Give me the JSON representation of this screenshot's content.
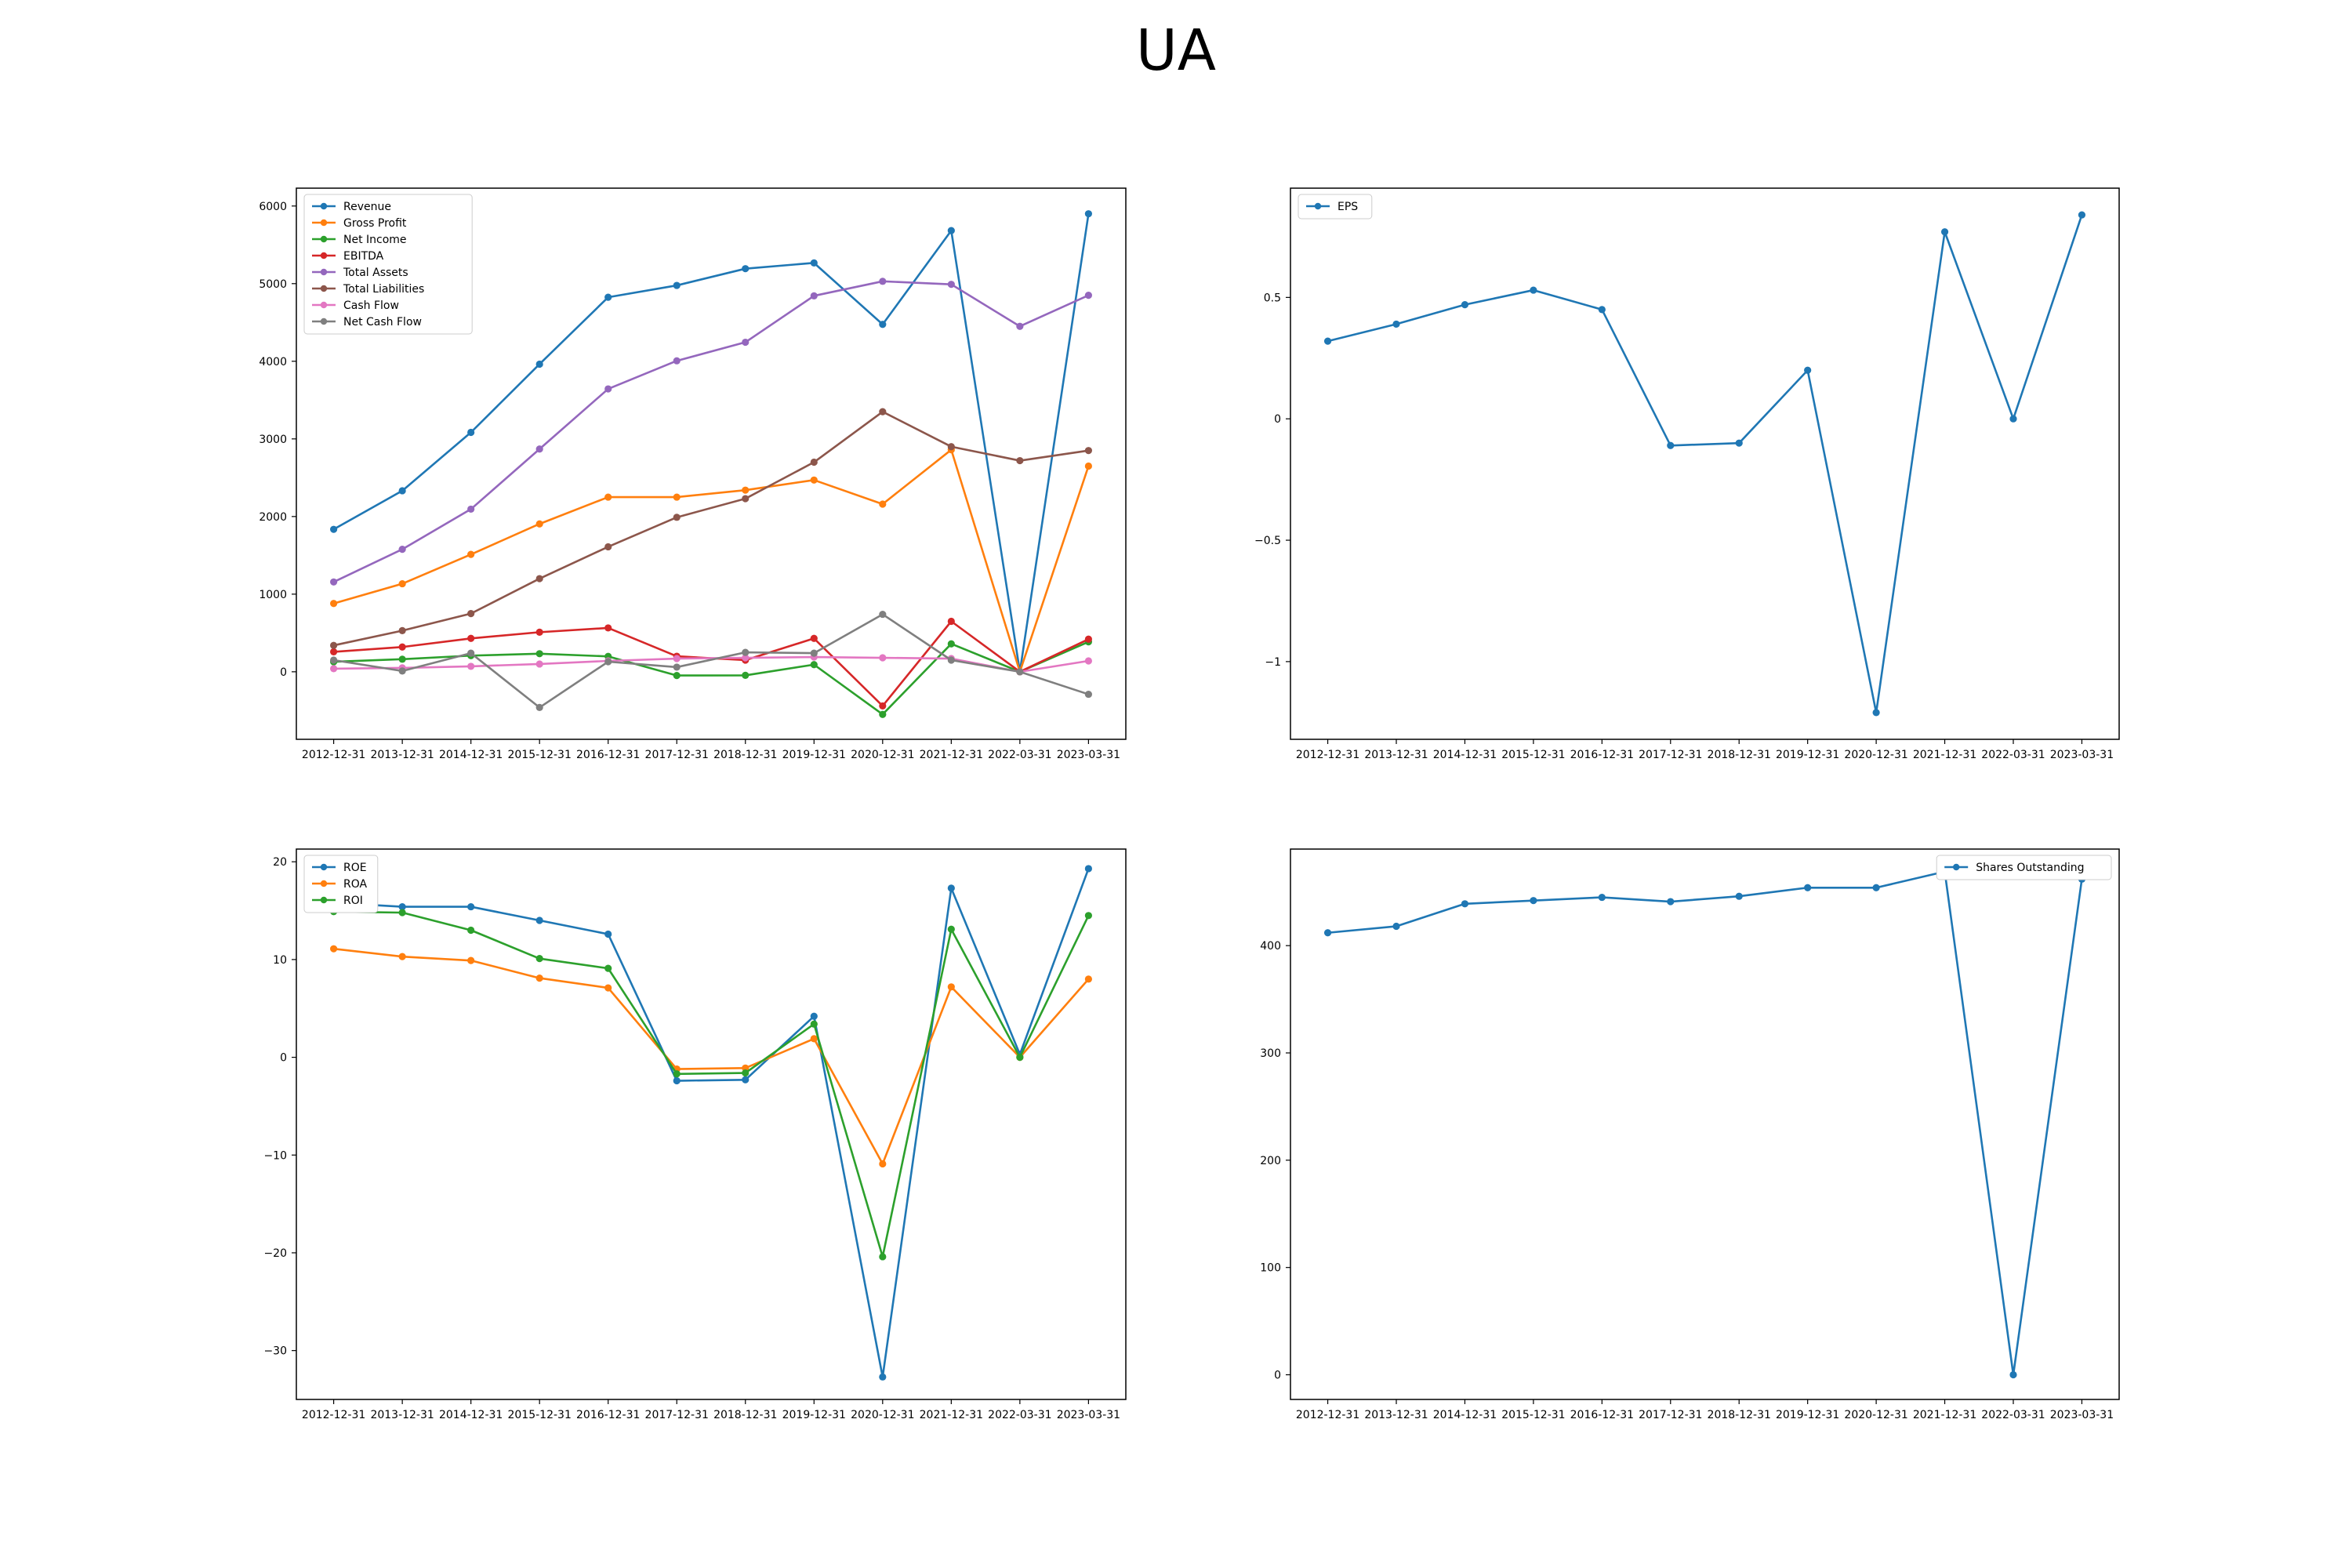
{
  "figure": {
    "title": "UA"
  },
  "chart_data": [
    {
      "type": "line",
      "title": "",
      "xlabel": "",
      "ylabel": "",
      "categories": [
        "2012-12-31",
        "2013-12-31",
        "2014-12-31",
        "2015-12-31",
        "2016-12-31",
        "2017-12-31",
        "2018-12-31",
        "2019-12-31",
        "2020-12-31",
        "2021-12-31",
        "2022-03-31",
        "2023-03-31"
      ],
      "ylim": [
        -870,
        6230
      ],
      "yticks": [
        0,
        1000,
        2000,
        3000,
        4000,
        5000,
        6000
      ],
      "legend_position": "top-left",
      "series": [
        {
          "name": "Revenue",
          "color": "#1f77b4",
          "values": [
            1835,
            2332,
            3084,
            3963,
            4825,
            4977,
            5193,
            5267,
            4475,
            5683,
            0,
            5900
          ]
        },
        {
          "name": "Gross Profit",
          "color": "#ff7f0e",
          "values": [
            880,
            1134,
            1512,
            1905,
            2250,
            2250,
            2340,
            2470,
            2160,
            2860,
            0,
            2650
          ]
        },
        {
          "name": "Net Income",
          "color": "#2ca02c",
          "values": [
            129,
            162,
            208,
            233,
            198,
            -48,
            -46,
            92,
            -549,
            360,
            0,
            386
          ]
        },
        {
          "name": "EBITDA",
          "color": "#d62728",
          "values": [
            257,
            319,
            430,
            510,
            565,
            200,
            150,
            430,
            -440,
            650,
            0,
            420
          ]
        },
        {
          "name": "Total Assets",
          "color": "#9467bd",
          "values": [
            1157,
            1578,
            2095,
            2869,
            3644,
            4006,
            4245,
            4843,
            5030,
            4991,
            4450,
            4850
          ]
        },
        {
          "name": "Total Liabilities",
          "color": "#8c564b",
          "values": [
            340,
            530,
            750,
            1200,
            1610,
            1990,
            2230,
            2700,
            3350,
            2900,
            2720,
            2850
          ]
        },
        {
          "name": "Cash Flow",
          "color": "#e377c2",
          "values": [
            40,
            50,
            70,
            100,
            140,
            170,
            180,
            190,
            180,
            170,
            0,
            140
          ]
        },
        {
          "name": "Net Cash Flow",
          "color": "#7f7f7f",
          "values": [
            150,
            10,
            240,
            -460,
            130,
            60,
            250,
            240,
            740,
            150,
            0,
            -290
          ]
        }
      ]
    },
    {
      "type": "line",
      "title": "",
      "xlabel": "",
      "ylabel": "",
      "categories": [
        "2012-12-31",
        "2013-12-31",
        "2014-12-31",
        "2015-12-31",
        "2016-12-31",
        "2017-12-31",
        "2018-12-31",
        "2019-12-31",
        "2020-12-31",
        "2021-12-31",
        "2022-03-31",
        "2023-03-31"
      ],
      "ylim": [
        -1.32,
        0.95
      ],
      "yticks": [
        -1.0,
        -0.5,
        0.0,
        0.5
      ],
      "legend_position": "top-left",
      "series": [
        {
          "name": "EPS",
          "color": "#1f77b4",
          "values": [
            0.32,
            0.39,
            0.47,
            0.53,
            0.45,
            -0.11,
            -0.1,
            0.2,
            -1.21,
            0.77,
            0.0,
            0.84
          ]
        }
      ]
    },
    {
      "type": "line",
      "title": "",
      "xlabel": "",
      "ylabel": "",
      "categories": [
        "2012-12-31",
        "2013-12-31",
        "2014-12-31",
        "2015-12-31",
        "2016-12-31",
        "2017-12-31",
        "2018-12-31",
        "2019-12-31",
        "2020-12-31",
        "2021-12-31",
        "2022-03-31",
        "2023-03-31"
      ],
      "ylim": [
        -35,
        21.3
      ],
      "yticks": [
        -30,
        -20,
        -10,
        0,
        10,
        20
      ],
      "legend_position": "top-left",
      "series": [
        {
          "name": "ROE",
          "color": "#1f77b4",
          "values": [
            15.8,
            15.4,
            15.4,
            14.0,
            12.6,
            -2.4,
            -2.3,
            4.2,
            -32.7,
            17.3,
            0.3,
            19.3
          ]
        },
        {
          "name": "ROA",
          "color": "#ff7f0e",
          "values": [
            11.1,
            10.3,
            9.9,
            8.1,
            7.1,
            -1.2,
            -1.1,
            1.9,
            -10.9,
            7.2,
            0.0,
            8.0
          ]
        },
        {
          "name": "ROI",
          "color": "#2ca02c",
          "values": [
            14.9,
            14.8,
            13.0,
            10.1,
            9.1,
            -1.7,
            -1.6,
            3.4,
            -20.4,
            13.1,
            0.0,
            14.5
          ]
        }
      ]
    },
    {
      "type": "line",
      "title": "",
      "xlabel": "",
      "ylabel": "",
      "categories": [
        "2012-12-31",
        "2013-12-31",
        "2014-12-31",
        "2015-12-31",
        "2016-12-31",
        "2017-12-31",
        "2018-12-31",
        "2019-12-31",
        "2020-12-31",
        "2021-12-31",
        "2022-03-31",
        "2023-03-31"
      ],
      "ylim": [
        -23,
        490
      ],
      "yticks": [
        0,
        100,
        200,
        300,
        400
      ],
      "legend_position": "top-right",
      "series": [
        {
          "name": "Shares Outstanding",
          "color": "#1f77b4",
          "values": [
            412,
            418,
            439,
            442,
            445,
            441,
            446,
            454,
            454,
            469,
            0,
            462
          ]
        }
      ]
    }
  ]
}
